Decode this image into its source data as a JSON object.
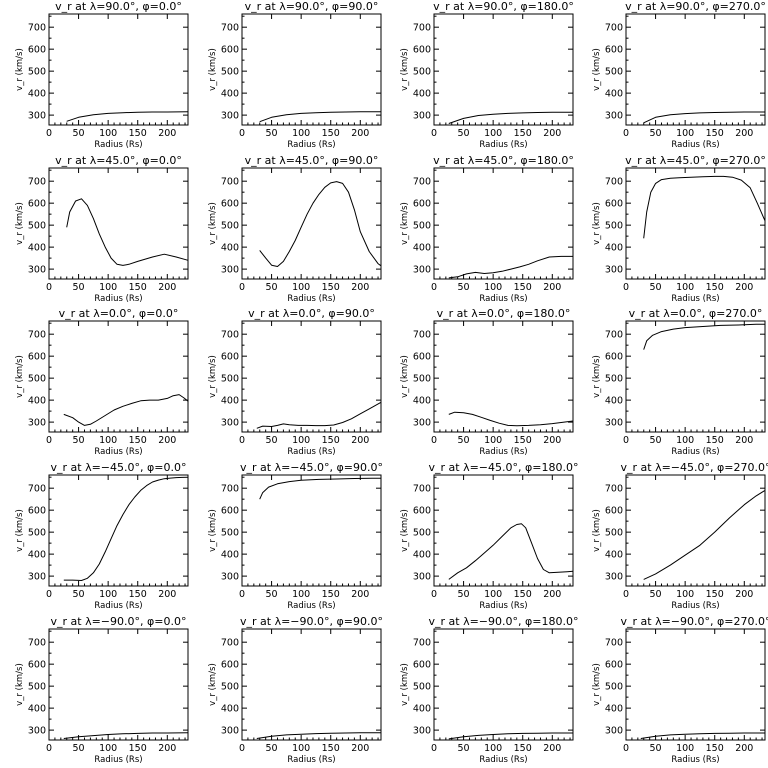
{
  "figure": {
    "layout": "5x4 grid of line plots",
    "background": "#ffffff",
    "line_color": "#000000"
  },
  "chart_data": [
    {
      "type": "line",
      "title": "v_r at λ=90.0°, φ=0.0°",
      "xlabel": "Radius (Rs)",
      "ylabel": "v_r (km/s)",
      "xlim": [
        0,
        235
      ],
      "ylim": [
        255,
        760
      ],
      "xticks": [
        0,
        50,
        100,
        150,
        200
      ],
      "yticks": [
        300,
        400,
        500,
        600,
        700
      ],
      "series": [
        {
          "x": [
            30,
            50,
            75,
            100,
            125,
            150,
            175,
            200,
            235
          ],
          "values": [
            272,
            290,
            302,
            308,
            311,
            313,
            314,
            314,
            315
          ]
        }
      ]
    },
    {
      "type": "line",
      "title": "v_r at λ=90.0°, φ=90.0°",
      "xlabel": "Radius (Rs)",
      "ylabel": "v_r (km/s)",
      "xlim": [
        0,
        235
      ],
      "ylim": [
        255,
        760
      ],
      "xticks": [
        0,
        50,
        100,
        150,
        200
      ],
      "yticks": [
        300,
        400,
        500,
        600,
        700
      ],
      "series": [
        {
          "x": [
            30,
            50,
            75,
            100,
            125,
            150,
            175,
            200,
            235
          ],
          "values": [
            270,
            290,
            302,
            308,
            311,
            313,
            314,
            315,
            315
          ]
        }
      ]
    },
    {
      "type": "line",
      "title": "v_r at λ=90.0°, φ=180.0°",
      "xlabel": "Radius (Rs)",
      "ylabel": "v_r (km/s)",
      "xlim": [
        0,
        235
      ],
      "ylim": [
        255,
        760
      ],
      "xticks": [
        0,
        50,
        100,
        150,
        200
      ],
      "yticks": [
        300,
        400,
        500,
        600,
        700
      ],
      "series": [
        {
          "x": [
            25,
            50,
            75,
            100,
            125,
            150,
            175,
            200,
            235
          ],
          "values": [
            262,
            285,
            298,
            304,
            308,
            310,
            312,
            313,
            313
          ]
        }
      ]
    },
    {
      "type": "line",
      "title": "v_r at λ=90.0°, φ=270.0°",
      "xlabel": "Radius (Rs)",
      "ylabel": "v_r (km/s)",
      "xlim": [
        0,
        235
      ],
      "ylim": [
        255,
        760
      ],
      "xticks": [
        0,
        50,
        100,
        150,
        200
      ],
      "yticks": [
        300,
        400,
        500,
        600,
        700
      ],
      "series": [
        {
          "x": [
            30,
            50,
            75,
            100,
            125,
            150,
            175,
            200,
            235
          ],
          "values": [
            265,
            290,
            302,
            307,
            310,
            312,
            313,
            314,
            314
          ]
        }
      ]
    },
    {
      "type": "line",
      "title": "v_r at λ=45.0°, φ=0.0°",
      "xlabel": "Radius (Rs)",
      "ylabel": "v_r (km/s)",
      "xlim": [
        0,
        235
      ],
      "ylim": [
        255,
        760
      ],
      "xticks": [
        0,
        50,
        100,
        150,
        200
      ],
      "yticks": [
        300,
        400,
        500,
        600,
        700
      ],
      "series": [
        {
          "x": [
            30,
            35,
            45,
            55,
            65,
            75,
            85,
            95,
            105,
            115,
            125,
            135,
            150,
            175,
            195,
            215,
            235
          ],
          "values": [
            490,
            560,
            610,
            620,
            590,
            530,
            460,
            400,
            350,
            322,
            317,
            322,
            335,
            355,
            368,
            355,
            340
          ]
        }
      ]
    },
    {
      "type": "line",
      "title": "v_r at λ=45.0°, φ=90.0°",
      "xlabel": "Radius (Rs)",
      "ylabel": "v_r (km/s)",
      "xlim": [
        0,
        235
      ],
      "ylim": [
        255,
        760
      ],
      "xticks": [
        0,
        50,
        100,
        150,
        200
      ],
      "yticks": [
        300,
        400,
        500,
        600,
        700
      ],
      "series": [
        {
          "x": [
            30,
            40,
            50,
            60,
            70,
            80,
            90,
            100,
            110,
            120,
            130,
            140,
            150,
            160,
            170,
            180,
            190,
            200,
            215,
            230,
            235
          ],
          "values": [
            385,
            350,
            318,
            312,
            335,
            380,
            430,
            490,
            550,
            600,
            640,
            672,
            692,
            698,
            690,
            650,
            570,
            470,
            380,
            325,
            315
          ]
        }
      ]
    },
    {
      "type": "line",
      "title": "v_r at λ=45.0°, φ=180.0°",
      "xlabel": "Radius (Rs)",
      "ylabel": "v_r (km/s)",
      "xlim": [
        0,
        235
      ],
      "ylim": [
        255,
        760
      ],
      "xticks": [
        0,
        50,
        100,
        150,
        200
      ],
      "yticks": [
        300,
        400,
        500,
        600,
        700
      ],
      "series": [
        {
          "x": [
            25,
            40,
            55,
            70,
            85,
            100,
            115,
            130,
            145,
            160,
            175,
            195,
            215,
            235
          ],
          "values": [
            260,
            265,
            278,
            285,
            280,
            283,
            290,
            300,
            310,
            322,
            338,
            355,
            358,
            358
          ]
        }
      ]
    },
    {
      "type": "line",
      "title": "v_r at λ=45.0°, φ=270.0°",
      "xlabel": "Radius (Rs)",
      "ylabel": "v_r (km/s)",
      "xlim": [
        0,
        235
      ],
      "ylim": [
        255,
        760
      ],
      "xticks": [
        0,
        50,
        100,
        150,
        200
      ],
      "yticks": [
        300,
        400,
        500,
        600,
        700
      ],
      "series": [
        {
          "x": [
            30,
            35,
            42,
            50,
            60,
            75,
            90,
            110,
            130,
            150,
            165,
            180,
            195,
            210,
            222,
            235
          ],
          "values": [
            440,
            560,
            650,
            690,
            707,
            713,
            716,
            718,
            720,
            722,
            722,
            718,
            705,
            670,
            600,
            520
          ]
        }
      ]
    },
    {
      "type": "line",
      "title": "v_r at λ=0.0°, φ=0.0°",
      "xlabel": "Radius (Rs)",
      "ylabel": "v_r (km/s)",
      "xlim": [
        0,
        235
      ],
      "ylim": [
        255,
        760
      ],
      "xticks": [
        0,
        50,
        100,
        150,
        200
      ],
      "yticks": [
        300,
        400,
        500,
        600,
        700
      ],
      "series": [
        {
          "x": [
            25,
            40,
            50,
            60,
            70,
            80,
            95,
            110,
            125,
            140,
            155,
            170,
            185,
            200,
            210,
            220,
            228,
            235
          ],
          "values": [
            335,
            320,
            300,
            285,
            290,
            305,
            330,
            355,
            372,
            385,
            397,
            400,
            400,
            408,
            420,
            425,
            410,
            395
          ]
        }
      ]
    },
    {
      "type": "line",
      "title": "v_r at λ=0.0°, φ=90.0°",
      "xlabel": "Radius (Rs)",
      "ylabel": "v_r (km/s)",
      "xlim": [
        0,
        235
      ],
      "ylim": [
        255,
        760
      ],
      "xticks": [
        0,
        50,
        100,
        150,
        200
      ],
      "yticks": [
        300,
        400,
        500,
        600,
        700
      ],
      "series": [
        {
          "x": [
            25,
            35,
            50,
            60,
            70,
            80,
            95,
            110,
            125,
            140,
            155,
            170,
            185,
            200,
            215,
            235
          ],
          "values": [
            272,
            282,
            280,
            285,
            292,
            288,
            285,
            285,
            284,
            284,
            287,
            298,
            315,
            338,
            360,
            390
          ]
        }
      ]
    },
    {
      "type": "line",
      "title": "v_r at λ=0.0°, φ=180.0°",
      "xlabel": "Radius (Rs)",
      "ylabel": "v_r (km/s)",
      "xlim": [
        0,
        235
      ],
      "ylim": [
        255,
        760
      ],
      "xticks": [
        0,
        50,
        100,
        150,
        200
      ],
      "yticks": [
        300,
        400,
        500,
        600,
        700
      ],
      "series": [
        {
          "x": [
            25,
            35,
            50,
            65,
            80,
            95,
            110,
            125,
            140,
            160,
            180,
            200,
            220,
            235
          ],
          "values": [
            335,
            345,
            343,
            335,
            322,
            308,
            295,
            285,
            283,
            285,
            288,
            293,
            300,
            305
          ]
        }
      ]
    },
    {
      "type": "line",
      "title": "v_r at λ=0.0°, φ=270.0°",
      "xlabel": "Radius (Rs)",
      "ylabel": "v_r (km/s)",
      "xlim": [
        0,
        235
      ],
      "ylim": [
        255,
        760
      ],
      "xticks": [
        0,
        50,
        100,
        150,
        200
      ],
      "yticks": [
        300,
        400,
        500,
        600,
        700
      ],
      "series": [
        {
          "x": [
            30,
            35,
            45,
            60,
            80,
            100,
            130,
            160,
            190,
            220,
            235
          ],
          "values": [
            630,
            670,
            695,
            712,
            723,
            730,
            735,
            740,
            742,
            745,
            745
          ]
        }
      ]
    },
    {
      "type": "line",
      "title": "v_r at λ=−45.0°, φ=0.0°",
      "xlabel": "Radius (Rs)",
      "ylabel": "v_r (km/s)",
      "xlim": [
        0,
        235
      ],
      "ylim": [
        255,
        760
      ],
      "xticks": [
        0,
        50,
        100,
        150,
        200
      ],
      "yticks": [
        300,
        400,
        500,
        600,
        700
      ],
      "series": [
        {
          "x": [
            25,
            40,
            55,
            65,
            75,
            85,
            95,
            105,
            115,
            125,
            135,
            145,
            155,
            165,
            175,
            185,
            195,
            205,
            215,
            225,
            235
          ],
          "values": [
            282,
            282,
            280,
            290,
            315,
            355,
            410,
            470,
            530,
            580,
            625,
            660,
            690,
            712,
            728,
            737,
            743,
            746,
            748,
            749,
            750
          ]
        }
      ]
    },
    {
      "type": "line",
      "title": "v_r at λ=−45.0°, φ=90.0°",
      "xlabel": "Radius (Rs)",
      "ylabel": "v_r (km/s)",
      "xlim": [
        0,
        235
      ],
      "ylim": [
        255,
        760
      ],
      "xticks": [
        0,
        50,
        100,
        150,
        200
      ],
      "yticks": [
        300,
        400,
        500,
        600,
        700
      ],
      "series": [
        {
          "x": [
            30,
            35,
            45,
            60,
            80,
            100,
            130,
            160,
            190,
            220,
            235
          ],
          "values": [
            650,
            680,
            705,
            720,
            730,
            736,
            740,
            742,
            744,
            745,
            745
          ]
        }
      ]
    },
    {
      "type": "line",
      "title": "v_r at λ=−45.0°, φ=180.0°",
      "xlabel": "Radius (Rs)",
      "ylabel": "v_r (km/s)",
      "xlim": [
        0,
        235
      ],
      "ylim": [
        255,
        760
      ],
      "xticks": [
        0,
        50,
        100,
        150,
        200
      ],
      "yticks": [
        300,
        400,
        500,
        600,
        700
      ],
      "series": [
        {
          "x": [
            25,
            40,
            55,
            70,
            85,
            100,
            115,
            130,
            140,
            148,
            155,
            165,
            175,
            185,
            195,
            210,
            225,
            235
          ],
          "values": [
            285,
            315,
            338,
            370,
            405,
            440,
            480,
            520,
            535,
            538,
            520,
            450,
            380,
            330,
            315,
            318,
            320,
            322
          ]
        }
      ]
    },
    {
      "type": "line",
      "title": "v_r at λ=−45.0°, φ=270.0°",
      "xlabel": "Radius (Rs)",
      "ylabel": "v_r (km/s)",
      "xlim": [
        0,
        235
      ],
      "ylim": [
        255,
        760
      ],
      "xticks": [
        0,
        50,
        100,
        150,
        200
      ],
      "yticks": [
        300,
        400,
        500,
        600,
        700
      ],
      "series": [
        {
          "x": [
            30,
            50,
            75,
            100,
            125,
            150,
            175,
            200,
            220,
            235
          ],
          "values": [
            285,
            310,
            350,
            395,
            440,
            500,
            565,
            625,
            665,
            690
          ]
        }
      ]
    },
    {
      "type": "line",
      "title": "v_r at λ=−90.0°, φ=0.0°",
      "xlabel": "Radius (Rs)",
      "ylabel": "v_r (km/s)",
      "xlim": [
        0,
        235
      ],
      "ylim": [
        255,
        760
      ],
      "xticks": [
        0,
        50,
        100,
        150,
        200
      ],
      "yticks": [
        300,
        400,
        500,
        600,
        700
      ],
      "series": [
        {
          "x": [
            25,
            50,
            75,
            100,
            125,
            150,
            175,
            200,
            235
          ],
          "values": [
            262,
            270,
            275,
            280,
            283,
            285,
            287,
            287,
            288
          ]
        }
      ]
    },
    {
      "type": "line",
      "title": "v_r at λ=−90.0°, φ=90.0°",
      "xlabel": "Radius (Rs)",
      "ylabel": "v_r (km/s)",
      "xlim": [
        0,
        235
      ],
      "ylim": [
        255,
        760
      ],
      "xticks": [
        0,
        50,
        100,
        150,
        200
      ],
      "yticks": [
        300,
        400,
        500,
        600,
        700
      ],
      "series": [
        {
          "x": [
            25,
            50,
            75,
            100,
            125,
            150,
            175,
            200,
            235
          ],
          "values": [
            262,
            272,
            278,
            281,
            284,
            286,
            287,
            288,
            288
          ]
        }
      ]
    },
    {
      "type": "line",
      "title": "v_r at λ=−90.0°, φ=180.0°",
      "xlabel": "Radius (Rs)",
      "ylabel": "v_r (km/s)",
      "xlim": [
        0,
        235
      ],
      "ylim": [
        255,
        760
      ],
      "xticks": [
        0,
        50,
        100,
        150,
        200
      ],
      "yticks": [
        300,
        400,
        500,
        600,
        700
      ],
      "series": [
        {
          "x": [
            25,
            50,
            75,
            100,
            125,
            150,
            175,
            200,
            235
          ],
          "values": [
            260,
            270,
            276,
            280,
            283,
            285,
            286,
            287,
            287
          ]
        }
      ]
    },
    {
      "type": "line",
      "title": "v_r at λ=−90.0°, φ=270.0°",
      "xlabel": "Radius (Rs)",
      "ylabel": "v_r (km/s)",
      "xlim": [
        0,
        235
      ],
      "ylim": [
        255,
        760
      ],
      "xticks": [
        0,
        50,
        100,
        150,
        200
      ],
      "yticks": [
        300,
        400,
        500,
        600,
        700
      ],
      "series": [
        {
          "x": [
            25,
            50,
            75,
            100,
            125,
            150,
            175,
            200,
            235
          ],
          "values": [
            262,
            272,
            278,
            281,
            283,
            285,
            286,
            287,
            287
          ]
        }
      ]
    }
  ]
}
